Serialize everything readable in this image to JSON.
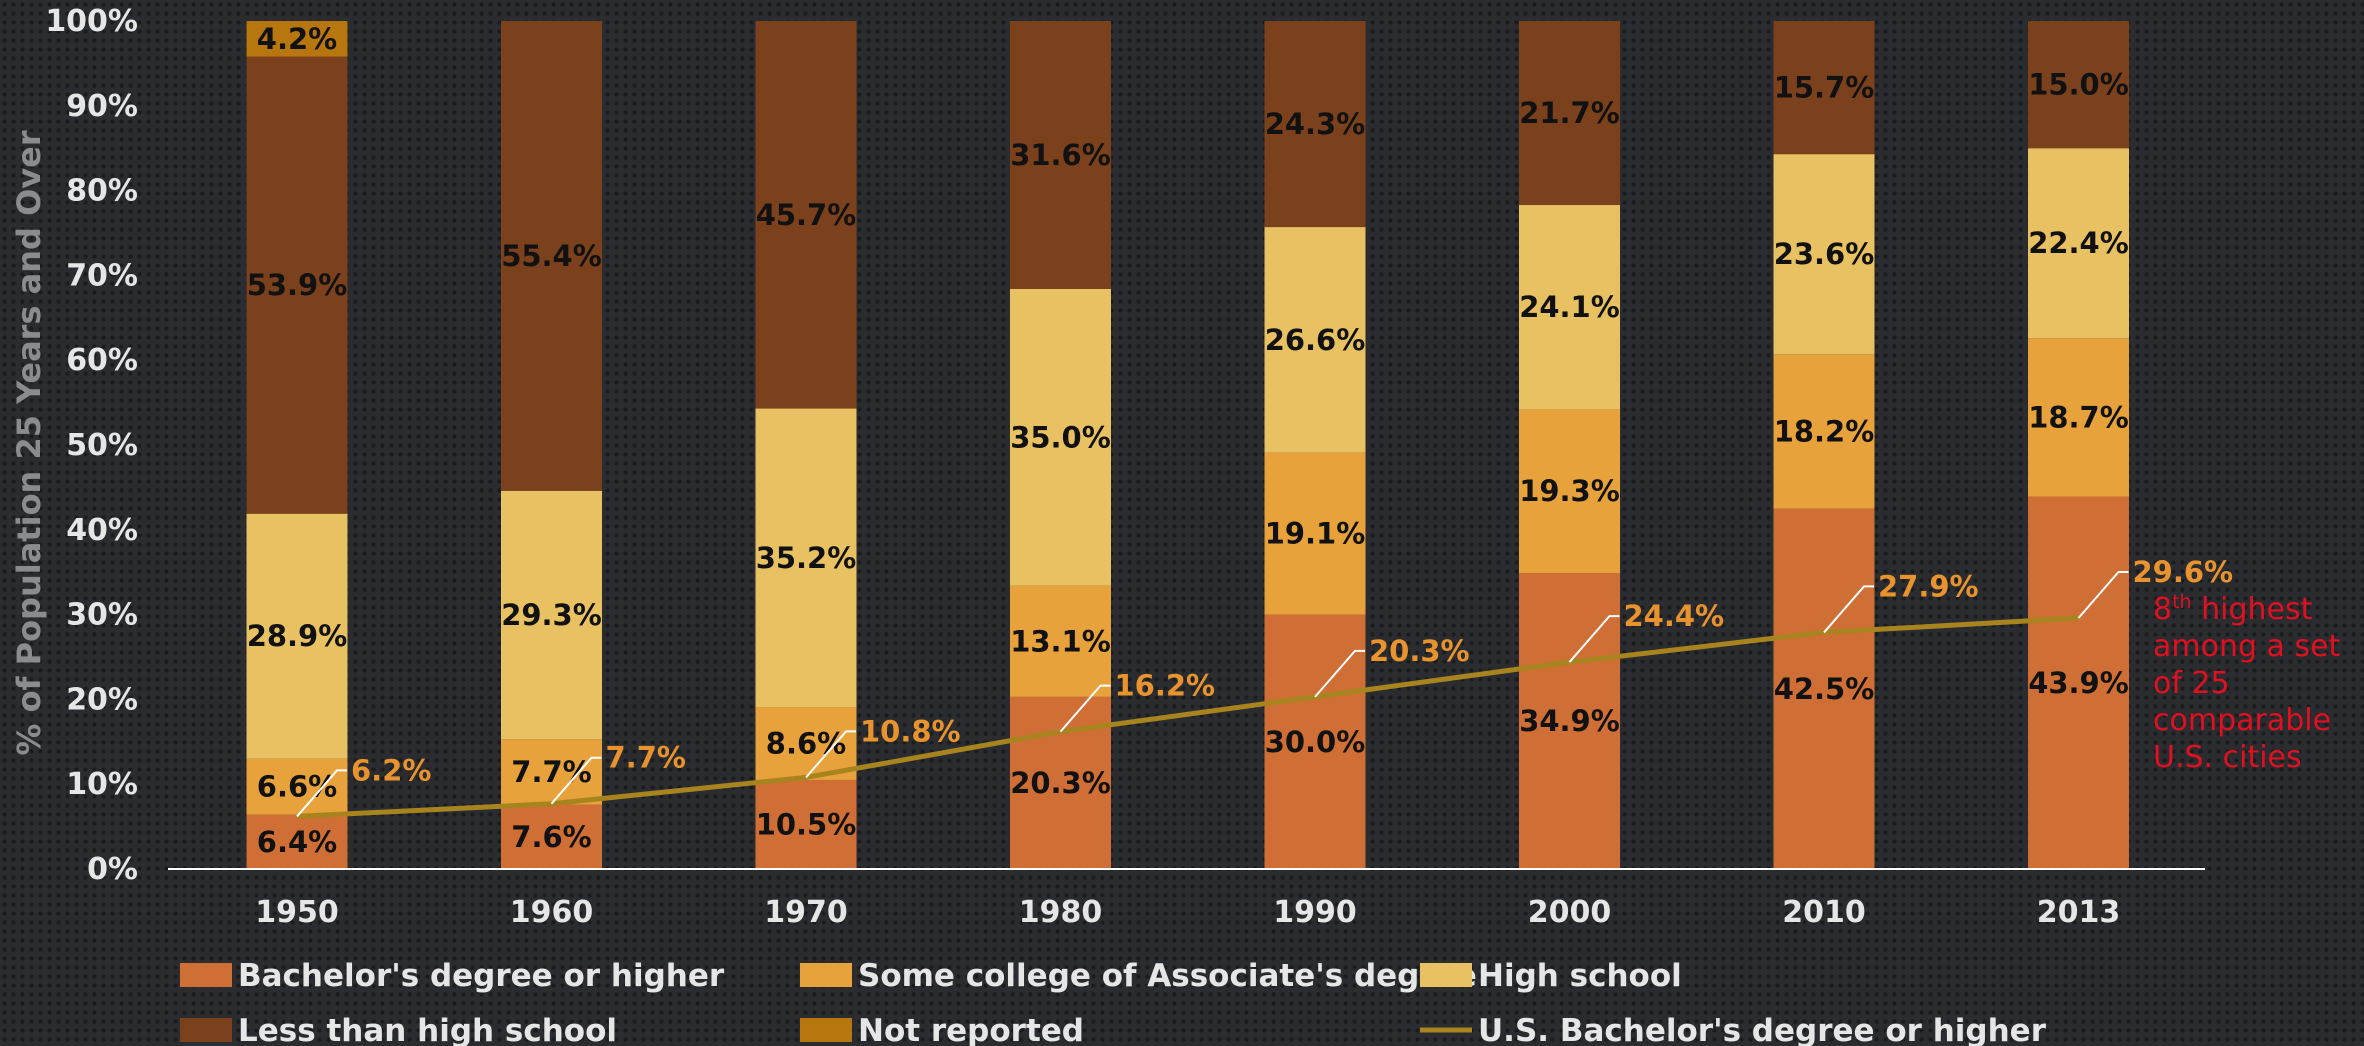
{
  "chart_data": {
    "type": "bar",
    "stacked": true,
    "categories": [
      "1950",
      "1960",
      "1970",
      "1980",
      "1990",
      "2000",
      "2010",
      "2013"
    ],
    "series": [
      {
        "name": "Bachelor's degree or higher",
        "color": "#cf6f35",
        "values": [
          6.4,
          7.6,
          10.5,
          20.3,
          30.0,
          34.9,
          42.5,
          43.9
        ],
        "labels": [
          "6.4%",
          "7.6%",
          "10.5%",
          "20.3%",
          "30.0%",
          "34.9%",
          "42.5%",
          "43.9%"
        ]
      },
      {
        "name": "Some college of Associate's degree",
        "color": "#e8a23b",
        "values": [
          6.6,
          7.7,
          8.6,
          13.1,
          19.1,
          19.3,
          18.2,
          18.7
        ],
        "labels": [
          "6.6%",
          "7.7%",
          "8.6%",
          "13.1%",
          "19.1%",
          "19.3%",
          "18.2%",
          "18.7%"
        ]
      },
      {
        "name": "High school",
        "color": "#e8c162",
        "values": [
          28.9,
          29.3,
          35.2,
          35.0,
          26.6,
          24.1,
          23.6,
          22.4
        ],
        "labels": [
          "28.9%",
          "29.3%",
          "35.2%",
          "35.0%",
          "26.6%",
          "24.1%",
          "23.6%",
          "22.4%"
        ]
      },
      {
        "name": "Less than high school",
        "color": "#7b401c",
        "values": [
          53.9,
          55.4,
          45.7,
          31.6,
          24.3,
          21.7,
          15.7,
          15.0
        ],
        "labels": [
          "53.9%",
          "55.4%",
          "45.7%",
          "31.6%",
          "24.3%",
          "21.7%",
          "15.7%",
          "15.0%"
        ]
      },
      {
        "name": "Not reported",
        "color": "#b8760f",
        "values": [
          4.2,
          0,
          0,
          0,
          0,
          0,
          0,
          0
        ],
        "labels": [
          "4.2%",
          "",
          "",
          "",
          "",
          "",
          "",
          ""
        ]
      }
    ],
    "line": {
      "name": "U.S. Bachelor's degree or higher",
      "color": "#a8841f",
      "values": [
        6.2,
        7.7,
        10.8,
        16.2,
        20.3,
        24.4,
        27.9,
        29.6
      ],
      "labels": [
        "6.2%",
        "7.7%",
        "10.8%",
        "16.2%",
        "20.3%",
        "24.4%",
        "27.9%",
        "29.6%"
      ]
    },
    "ylabel": "% of Population 25 Years and Over",
    "ylim": [
      0,
      100
    ],
    "yticks": [
      "0%",
      "10%",
      "20%",
      "30%",
      "40%",
      "50%",
      "60%",
      "70%",
      "80%",
      "90%",
      "100%"
    ],
    "legend_position": "bottom",
    "annotation": {
      "sup": "th",
      "lines": [
        "8    highest",
        "among a set",
        "of 25",
        "comparable",
        "U.S. cities"
      ],
      "prefix": "8"
    }
  }
}
